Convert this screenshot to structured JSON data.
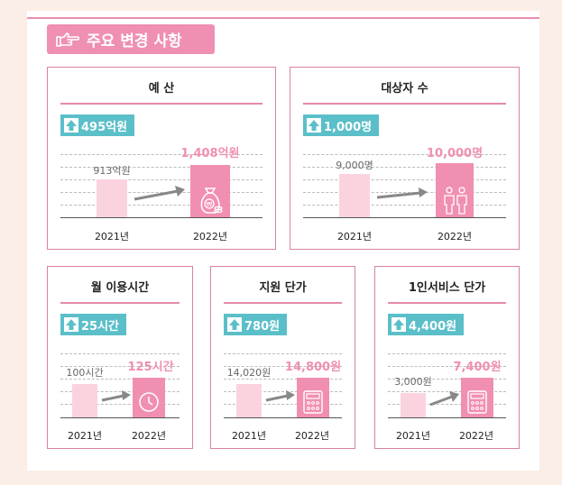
{
  "title": "주요 변경 사항",
  "colors": {
    "accent": "#ef8fb3",
    "badge": "#5bbfc9",
    "bar_prev": "#fbd3df",
    "bar_curr": "#f18fb2",
    "value_text": "#f08fb0"
  },
  "cards": [
    {
      "title": "예 산",
      "change": "495억원",
      "prev_label": "913억원",
      "curr_label": "1,408억원",
      "prev_year": "2021년",
      "curr_year": "2022년",
      "prev_value": 913,
      "curr_value": 1408,
      "icon": "money-bag-icon"
    },
    {
      "title": "대상자 수",
      "change": "1,000명",
      "prev_label": "9,000명",
      "curr_label": "10,000명",
      "prev_year": "2021년",
      "curr_year": "2022년",
      "prev_value": 9000,
      "curr_value": 10000,
      "icon": "people-icon"
    },
    {
      "title": "월 이용시간",
      "change": "25시간",
      "prev_label": "100시간",
      "curr_label": "125시간",
      "prev_year": "2021년",
      "curr_year": "2022년",
      "prev_value": 100,
      "curr_value": 125,
      "icon": "clock-icon"
    },
    {
      "title": "지원 단가",
      "change": "780원",
      "prev_label": "14,020원",
      "curr_label": "14,800원",
      "prev_year": "2021년",
      "curr_year": "2022년",
      "prev_value": 14020,
      "curr_value": 14800,
      "icon": "calculator-icon"
    },
    {
      "title": "1인서비스 단가",
      "change": "4,400원",
      "prev_label": "3,000원",
      "curr_label": "7,400원",
      "prev_year": "2021년",
      "curr_year": "2022년",
      "prev_value": 3000,
      "curr_value": 7400,
      "icon": "calculator-icon"
    }
  ]
}
